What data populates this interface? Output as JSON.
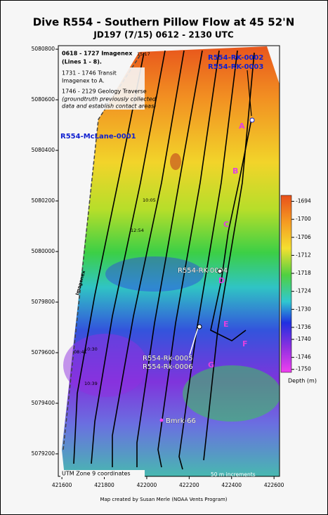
{
  "header": {
    "title": "Dive R554 - Southern Pillow Flow at 45 52'N",
    "subtitle": "JD197 (7/15) 0612 - 2130 UTC"
  },
  "axes": {
    "x": {
      "lim": [
        421583,
        422626
      ],
      "ticks": [
        421600,
        421800,
        422000,
        422200,
        422400,
        422600
      ]
    },
    "y": {
      "lim": [
        5079111,
        5080814
      ],
      "ticks": [
        5079200,
        5079400,
        5079600,
        5079800,
        5080000,
        5080200,
        5080400,
        5080600,
        5080800
      ]
    }
  },
  "notes": [
    "0618 - 1727 Imagenex",
    "(Lines 1 - 8).",
    "1731 - 1746 Transit",
    "Imagenex to A.",
    "1746 - 2129 Geology Traverse",
    "(groundtruth previously collected",
    "data and establish contact areas)"
  ],
  "samples": [
    "R554-RK-0002",
    "R554-RK-0003",
    "R554-McLane-0001",
    "R554-RK-0004",
    "R554-Rk-0005",
    "R554-Rk-0006",
    "Bmrk-66"
  ],
  "stations": [
    "A",
    "B",
    "C",
    "D",
    "E",
    "F",
    "G"
  ],
  "track_labels": [
    "Imagenex",
    "10:05",
    "12:54",
    "10:39",
    "10:30",
    "08:41",
    "15:17"
  ],
  "colorbar": {
    "label": "Depth (m)",
    "lim": [
      -1692,
      -1751
    ],
    "ticks": [
      -1694,
      -1700,
      -1706,
      -1712,
      -1718,
      -1724,
      -1730,
      -1736,
      -1740,
      -1746,
      -1750
    ]
  },
  "footer": {
    "zone": "UTM Zone 9 coordinates",
    "increment": "50 m increments",
    "credit": "Map created by Susan Merle (NOAA Vents Program)"
  }
}
